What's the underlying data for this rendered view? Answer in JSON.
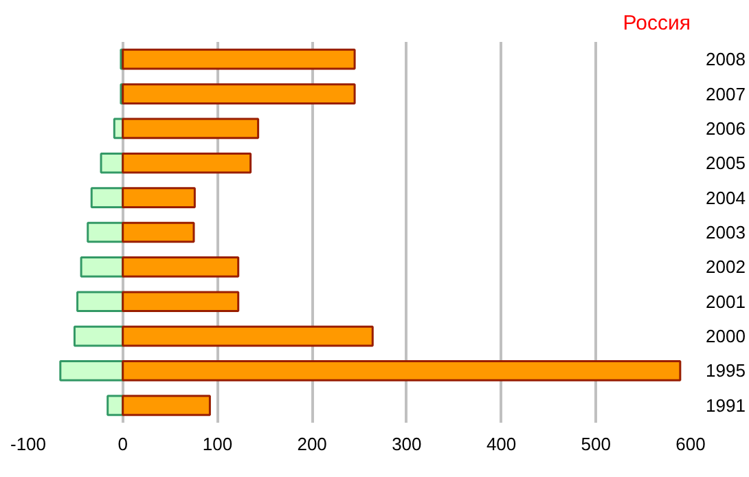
{
  "chart_data": {
    "type": "bar",
    "orientation": "horizontal",
    "stacked": true,
    "title": "Россия",
    "categories": [
      "2008",
      "2007",
      "2006",
      "2005",
      "2004",
      "2003",
      "2002",
      "2001",
      "2000",
      "1995",
      "1991"
    ],
    "series": [
      {
        "color": "#ccffcc",
        "values": [
          -2,
          -2,
          -9,
          -23,
          -33,
          -37,
          -44,
          -48,
          -51,
          -66,
          -16
        ]
      },
      {
        "color": "#ff9900",
        "values": [
          245,
          245,
          143,
          135,
          76,
          75,
          122,
          122,
          264,
          589,
          92
        ]
      }
    ],
    "xlim": [
      -100,
      600
    ],
    "xticks": [
      -100,
      0,
      100,
      200,
      300,
      400,
      500,
      600
    ],
    "grid": "x"
  }
}
